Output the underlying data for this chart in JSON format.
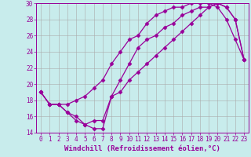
{
  "xlabel": "Windchill (Refroidissement éolien,°C)",
  "ylabel": "",
  "background_color": "#c8ecec",
  "line_color": "#990099",
  "xlim": [
    -0.5,
    23.5
  ],
  "ylim": [
    14,
    30
  ],
  "xticks": [
    0,
    1,
    2,
    3,
    4,
    5,
    6,
    7,
    8,
    9,
    10,
    11,
    12,
    13,
    14,
    15,
    16,
    17,
    18,
    19,
    20,
    21,
    22,
    23
  ],
  "yticks": [
    14,
    16,
    18,
    20,
    22,
    24,
    26,
    28,
    30
  ],
  "series1_x": [
    0,
    1,
    2,
    3,
    4,
    5,
    6,
    7,
    8,
    9,
    10,
    11,
    12,
    13,
    14,
    15,
    16,
    17,
    18,
    19,
    20,
    21,
    22,
    23
  ],
  "series1_y": [
    19.0,
    17.5,
    17.5,
    17.5,
    18.0,
    18.5,
    19.5,
    20.5,
    22.5,
    24.0,
    25.5,
    26.0,
    27.5,
    28.5,
    29.0,
    29.5,
    29.5,
    30.0,
    30.0,
    30.0,
    29.5,
    28.0,
    25.5,
    23.0
  ],
  "series2_x": [
    0,
    1,
    2,
    3,
    4,
    5,
    6,
    7,
    8,
    9,
    10,
    11,
    12,
    13,
    14,
    15,
    16,
    17,
    18,
    19,
    20,
    21,
    22,
    23
  ],
  "series2_y": [
    19.0,
    17.5,
    17.5,
    16.5,
    16.0,
    15.0,
    14.5,
    14.5,
    18.5,
    20.5,
    22.5,
    24.5,
    25.5,
    26.0,
    27.0,
    27.5,
    28.5,
    29.0,
    29.5,
    29.5,
    30.0,
    29.5,
    28.0,
    23.0
  ],
  "series3_x": [
    0,
    1,
    2,
    3,
    4,
    5,
    6,
    7,
    8,
    9,
    10,
    11,
    12,
    13,
    14,
    15,
    16,
    17,
    18,
    19,
    20,
    21,
    22,
    23
  ],
  "series3_y": [
    19.0,
    17.5,
    17.5,
    16.5,
    15.5,
    15.0,
    15.5,
    15.5,
    18.5,
    19.0,
    20.5,
    21.5,
    22.5,
    23.5,
    24.5,
    25.5,
    26.5,
    27.5,
    28.5,
    29.5,
    30.0,
    29.5,
    28.0,
    23.0
  ],
  "marker": "D",
  "markersize": 2.5,
  "linewidth": 0.9,
  "grid_color": "#aaaaaa",
  "xlabel_fontsize": 6.5,
  "tick_fontsize": 5.5,
  "grid_linewidth": 0.4
}
